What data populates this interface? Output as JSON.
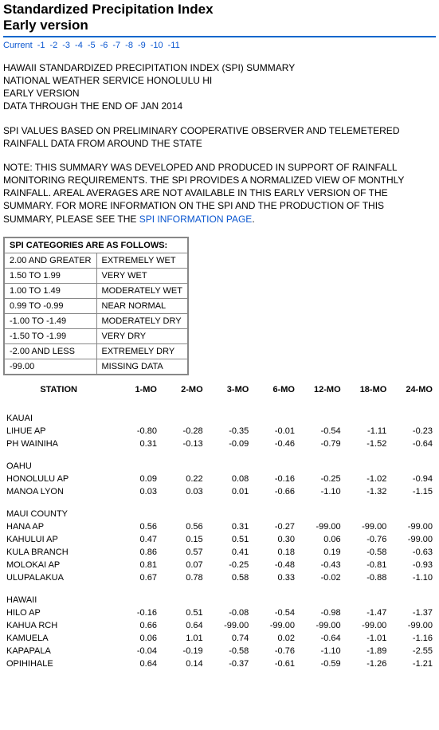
{
  "title_line1": "Standardized Precipitation Index",
  "title_line2": "Early version",
  "nav": [
    "Current",
    "-1",
    "-2",
    "-3",
    "-4",
    "-5",
    "-6",
    "-7",
    "-8",
    "-9",
    "-10",
    "-11"
  ],
  "intro": [
    "HAWAII STANDARDIZED PRECIPITATION INDEX (SPI) SUMMARY",
    "NATIONAL WEATHER SERVICE HONOLULU HI",
    "EARLY VERSION",
    "DATA THROUGH THE END OF JAN 2014"
  ],
  "para1": "SPI VALUES BASED ON PRELIMINARY COOPERATIVE OBSERVER AND TELEMETERED RAINFALL DATA FROM AROUND THE STATE",
  "para2a": "NOTE: THIS SUMMARY WAS DEVELOPED AND PRODUCED IN SUPPORT OF RAINFALL MONITORING REQUIREMENTS. THE SPI PROVIDES A NORMALIZED VIEW OF MONTHLY RAINFALL. AREAL AVERAGES ARE NOT AVAILABLE IN THIS EARLY VERSION OF THE SUMMARY. FOR MORE INFORMATION ON THE SPI AND THE PRODUCTION OF THIS SUMMARY, PLEASE SEE THE ",
  "para2_link": "SPI INFORMATION PAGE",
  "para2b": ".",
  "cat_header": "SPI CATEGORIES ARE AS FOLLOWS:",
  "categories": [
    [
      "2.00 AND GREATER",
      "EXTREMELY WET"
    ],
    [
      "1.50 TO 1.99",
      "VERY WET"
    ],
    [
      "1.00 TO 1.49",
      "MODERATELY WET"
    ],
    [
      "0.99 TO -0.99",
      "NEAR NORMAL"
    ],
    [
      "-1.00 TO -1.49",
      "MODERATELY DRY"
    ],
    [
      "-1.50 TO -1.99",
      "VERY DRY"
    ],
    [
      "-2.00 AND LESS",
      "EXTREMELY DRY"
    ],
    [
      "-99.00",
      "MISSING DATA"
    ]
  ],
  "columns": [
    "STATION",
    "1-MO",
    "2-MO",
    "3-MO",
    "6-MO",
    "12-MO",
    "18-MO",
    "24-MO"
  ],
  "sections": [
    {
      "name": "KAUAI",
      "rows": [
        [
          "LIHUE AP",
          "-0.80",
          "-0.28",
          "-0.35",
          "-0.01",
          "-0.54",
          "-1.11",
          "-0.23"
        ],
        [
          "PH WAINIHA",
          "0.31",
          "-0.13",
          "-0.09",
          "-0.46",
          "-0.79",
          "-1.52",
          "-0.64"
        ]
      ]
    },
    {
      "name": "OAHU",
      "rows": [
        [
          "HONOLULU AP",
          "0.09",
          "0.22",
          "0.08",
          "-0.16",
          "-0.25",
          "-1.02",
          "-0.94"
        ],
        [
          "MANOA LYON",
          "0.03",
          "0.03",
          "0.01",
          "-0.66",
          "-1.10",
          "-1.32",
          "-1.15"
        ]
      ]
    },
    {
      "name": "MAUI COUNTY",
      "rows": [
        [
          "HANA AP",
          "0.56",
          "0.56",
          "0.31",
          "-0.27",
          "-99.00",
          "-99.00",
          "-99.00"
        ],
        [
          "KAHULUI AP",
          "0.47",
          "0.15",
          "0.51",
          "0.30",
          "0.06",
          "-0.76",
          "-99.00"
        ],
        [
          "KULA BRANCH",
          "0.86",
          "0.57",
          "0.41",
          "0.18",
          "0.19",
          "-0.58",
          "-0.63"
        ],
        [
          "MOLOKAI AP",
          "0.81",
          "0.07",
          "-0.25",
          "-0.48",
          "-0.43",
          "-0.81",
          "-0.93"
        ],
        [
          "ULUPALAKUA",
          "0.67",
          "0.78",
          "0.58",
          "0.33",
          "-0.02",
          "-0.88",
          "-1.10"
        ]
      ]
    },
    {
      "name": "HAWAII",
      "rows": [
        [
          "HILO AP",
          "-0.16",
          "0.51",
          "-0.08",
          "-0.54",
          "-0.98",
          "-1.47",
          "-1.37"
        ],
        [
          "KAHUA RCH",
          "0.66",
          "0.64",
          "-99.00",
          "-99.00",
          "-99.00",
          "-99.00",
          "-99.00"
        ],
        [
          "KAMUELA",
          "0.06",
          "1.01",
          "0.74",
          "0.02",
          "-0.64",
          "-1.01",
          "-1.16"
        ],
        [
          "KAPAPALA",
          "-0.04",
          "-0.19",
          "-0.58",
          "-0.76",
          "-1.10",
          "-1.89",
          "-2.55"
        ],
        [
          "OPIHIHALE",
          "0.64",
          "0.14",
          "-0.37",
          "-0.61",
          "-0.59",
          "-1.26",
          "-1.21"
        ]
      ]
    }
  ]
}
